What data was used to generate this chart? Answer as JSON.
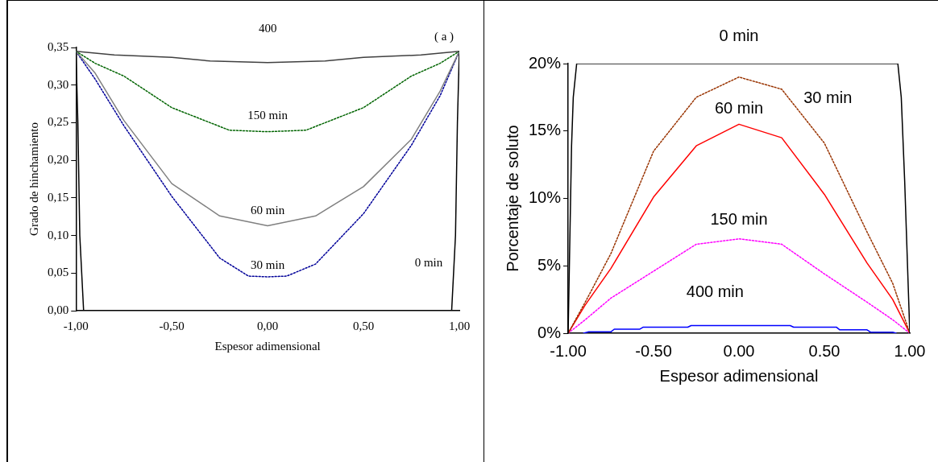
{
  "chart_data": [
    {
      "type": "line",
      "xlabel": "Espesor adimensional",
      "ylabel": "Grado de hinchamiento",
      "annotations": [
        "( a )"
      ],
      "xlim": [
        -1,
        1
      ],
      "ylim": [
        0,
        0.35
      ],
      "xticks": [
        {
          "value": -1,
          "label": "-1,00"
        },
        {
          "value": -0.5,
          "label": "-0,50"
        },
        {
          "value": 0,
          "label": "0,00"
        },
        {
          "value": 0.5,
          "label": "0,50"
        },
        {
          "value": 1,
          "label": "1,00"
        }
      ],
      "yticks": [
        {
          "value": 0,
          "label": "0,00"
        },
        {
          "value": 0.05,
          "label": "0,05"
        },
        {
          "value": 0.1,
          "label": "0,10"
        },
        {
          "value": 0.15,
          "label": "0,15"
        },
        {
          "value": 0.2,
          "label": "0,20"
        },
        {
          "value": 0.25,
          "label": "0,25"
        },
        {
          "value": 0.3,
          "label": "0,30"
        },
        {
          "value": 0.35,
          "label": "0,35"
        }
      ],
      "grid": false,
      "legend": false,
      "marker": "none",
      "series": [
        {
          "name": "400",
          "color": "#404040",
          "line_style": "solid",
          "x": [
            -1,
            -0.8,
            -0.5,
            -0.3,
            0,
            0.3,
            0.5,
            0.8,
            1
          ],
          "values": [
            0.345,
            0.34,
            0.337,
            0.332,
            0.33,
            0.332,
            0.337,
            0.34,
            0.345
          ]
        },
        {
          "name": "150 min",
          "color": "#006400",
          "line_style": "dotted",
          "x": [
            -1,
            -0.9,
            -0.75,
            -0.5,
            -0.2,
            0,
            0.2,
            0.5,
            0.75,
            0.9,
            1
          ],
          "values": [
            0.345,
            0.329,
            0.312,
            0.27,
            0.24,
            0.238,
            0.24,
            0.27,
            0.312,
            0.329,
            0.345
          ]
        },
        {
          "name": "60 min",
          "color": "#808080",
          "line_style": "solid",
          "x": [
            -1,
            -0.9,
            -0.75,
            -0.5,
            -0.25,
            0,
            0.25,
            0.5,
            0.75,
            0.9,
            1
          ],
          "values": [
            0.345,
            0.316,
            0.253,
            0.169,
            0.126,
            0.113,
            0.126,
            0.165,
            0.228,
            0.292,
            0.345
          ]
        },
        {
          "name": "30 min",
          "color": "#000099",
          "line_style": "dotted",
          "x": [
            -1,
            -0.9,
            -0.75,
            -0.5,
            -0.25,
            -0.1,
            0,
            0.1,
            0.25,
            0.5,
            0.75,
            0.9,
            1
          ],
          "values": [
            0.345,
            0.308,
            0.246,
            0.152,
            0.07,
            0.046,
            0.045,
            0.046,
            0.062,
            0.129,
            0.22,
            0.286,
            0.345
          ]
        },
        {
          "name": "0 min",
          "color": "#000000",
          "line_style": "solid",
          "x": [
            -1,
            -0.99,
            -0.98,
            -0.96,
            0.96,
            0.98,
            0.99,
            1
          ],
          "values": [
            0.345,
            0.25,
            0.1,
            0,
            0,
            0.1,
            0.25,
            0.345
          ]
        }
      ]
    },
    {
      "type": "line",
      "xlabel": "Espesor adimensional",
      "ylabel": "Porcentaje de soluto",
      "xlim": [
        -1,
        1
      ],
      "ylim": [
        0,
        20
      ],
      "xticks": [
        {
          "value": -1,
          "label": "-1.00"
        },
        {
          "value": -0.5,
          "label": "-0.50"
        },
        {
          "value": 0,
          "label": "0.00"
        },
        {
          "value": 0.5,
          "label": "0.50"
        },
        {
          "value": 1,
          "label": "1.00"
        }
      ],
      "yticks": [
        {
          "value": 0,
          "label": "0%"
        },
        {
          "value": 5,
          "label": "5%"
        },
        {
          "value": 10,
          "label": "10%"
        },
        {
          "value": 15,
          "label": "15%"
        },
        {
          "value": 20,
          "label": "20%"
        }
      ],
      "grid": false,
      "legend": false,
      "marker": "none",
      "series": [
        {
          "name": "0 min",
          "color": "#000000",
          "line_style": "solid",
          "x": [
            -1,
            -0.98,
            -0.97,
            -0.95,
            -0.93,
            0.91,
            0.93,
            0.95,
            0.97,
            1
          ],
          "values": [
            0,
            13.9,
            17.5,
            20,
            20,
            20,
            20,
            17.5,
            11.3,
            0
          ]
        },
        {
          "name": "30 min",
          "color": "#993300",
          "line_style": "dotted",
          "x": [
            -1,
            -0.9,
            -0.75,
            -0.5,
            -0.25,
            0,
            0.25,
            0.5,
            0.75,
            0.9,
            1
          ],
          "values": [
            0,
            2.3,
            5.9,
            13.5,
            17.5,
            19,
            18.1,
            14.1,
            7.5,
            3.7,
            0
          ]
        },
        {
          "name": "60 min",
          "color": "#ff0000",
          "line_style": "solid",
          "x": [
            -1,
            -0.9,
            -0.75,
            -0.5,
            -0.25,
            0,
            0.25,
            0.5,
            0.75,
            0.9,
            1
          ],
          "values": [
            0,
            2.1,
            4.8,
            10.1,
            13.9,
            15.5,
            14.5,
            10.3,
            5.2,
            2.5,
            0
          ]
        },
        {
          "name": "150 min",
          "color": "#ff00ff",
          "line_style": "dotted",
          "x": [
            -1,
            -0.9,
            -0.75,
            -0.5,
            -0.25,
            0,
            0.25,
            0.5,
            0.75,
            0.9,
            1
          ],
          "values": [
            0,
            1,
            2.6,
            4.6,
            6.6,
            7,
            6.6,
            4.4,
            2.3,
            1,
            0
          ]
        },
        {
          "name": "400 min",
          "color": "#0000ff",
          "line_style": "solid",
          "x": [
            -0.91,
            -0.88,
            -0.75,
            -0.73,
            -0.58,
            -0.56,
            -0.3,
            -0.28,
            0.3,
            0.32,
            0.57,
            0.59,
            0.75,
            0.77,
            0.9,
            0.92
          ],
          "values": [
            0,
            0.1,
            0.1,
            0.3,
            0.3,
            0.45,
            0.45,
            0.57,
            0.57,
            0.45,
            0.45,
            0.25,
            0.25,
            0.08,
            0.08,
            0
          ]
        }
      ]
    }
  ]
}
